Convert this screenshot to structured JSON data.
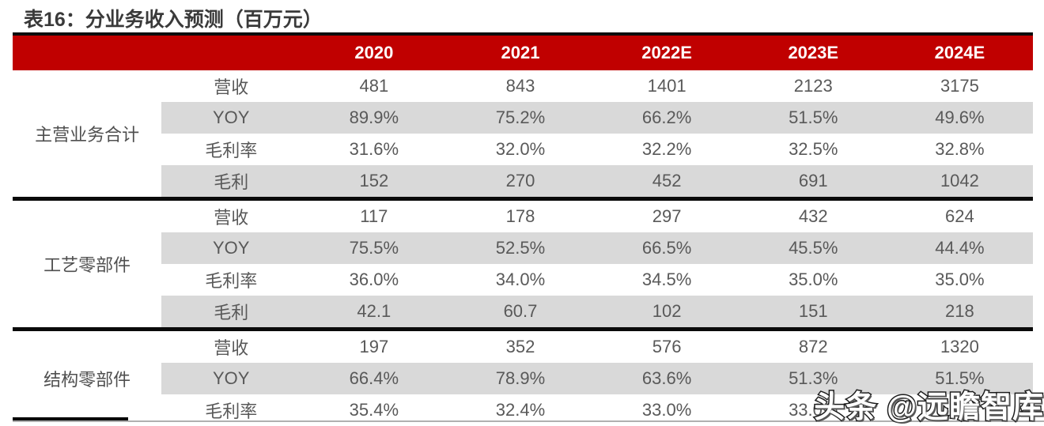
{
  "title": "表16：分业务收入预测（百万元）",
  "colors": {
    "header_bg": "#C00000",
    "header_text": "#FFFFFF",
    "stripe": "#D9D9D9",
    "body_text": "#595959",
    "title_text": "#3A3A3A",
    "divider": "#0A0A0A"
  },
  "chart_data": {
    "type": "table",
    "title": "表16：分业务收入预测（百万元）",
    "columns": [
      "2020",
      "2021",
      "2022E",
      "2023E",
      "2024E"
    ],
    "groups": [
      {
        "name": "主营业务合计",
        "rows": [
          {
            "metric": "营收",
            "values": [
              "481",
              "843",
              "1401",
              "2123",
              "3175"
            ]
          },
          {
            "metric": "YOY",
            "values": [
              "89.9%",
              "75.2%",
              "66.2%",
              "51.5%",
              "49.6%"
            ]
          },
          {
            "metric": "毛利率",
            "values": [
              "31.6%",
              "32.0%",
              "32.2%",
              "32.5%",
              "32.8%"
            ]
          },
          {
            "metric": "毛利",
            "values": [
              "152",
              "270",
              "452",
              "691",
              "1042"
            ]
          }
        ]
      },
      {
        "name": "工艺零部件",
        "rows": [
          {
            "metric": "营收",
            "values": [
              "117",
              "178",
              "297",
              "432",
              "624"
            ]
          },
          {
            "metric": "YOY",
            "values": [
              "75.5%",
              "52.5%",
              "66.5%",
              "45.5%",
              "44.4%"
            ]
          },
          {
            "metric": "毛利率",
            "values": [
              "36.0%",
              "34.0%",
              "34.5%",
              "35.0%",
              "35.0%"
            ]
          },
          {
            "metric": "毛利",
            "values": [
              "42.1",
              "60.7",
              "102",
              "151",
              "218"
            ]
          }
        ]
      },
      {
        "name": "结构零部件",
        "rows": [
          {
            "metric": "营收",
            "values": [
              "197",
              "352",
              "576",
              "872",
              "1320"
            ]
          },
          {
            "metric": "YOY",
            "values": [
              "66.4%",
              "78.9%",
              "63.6%",
              "51.3%",
              "51.5%"
            ]
          },
          {
            "metric": "毛利率",
            "values": [
              "35.4%",
              "32.4%",
              "33.0%",
              "33.0%",
              ""
            ]
          }
        ]
      }
    ]
  },
  "watermark": {
    "text": "头条 @远瞻智库"
  }
}
